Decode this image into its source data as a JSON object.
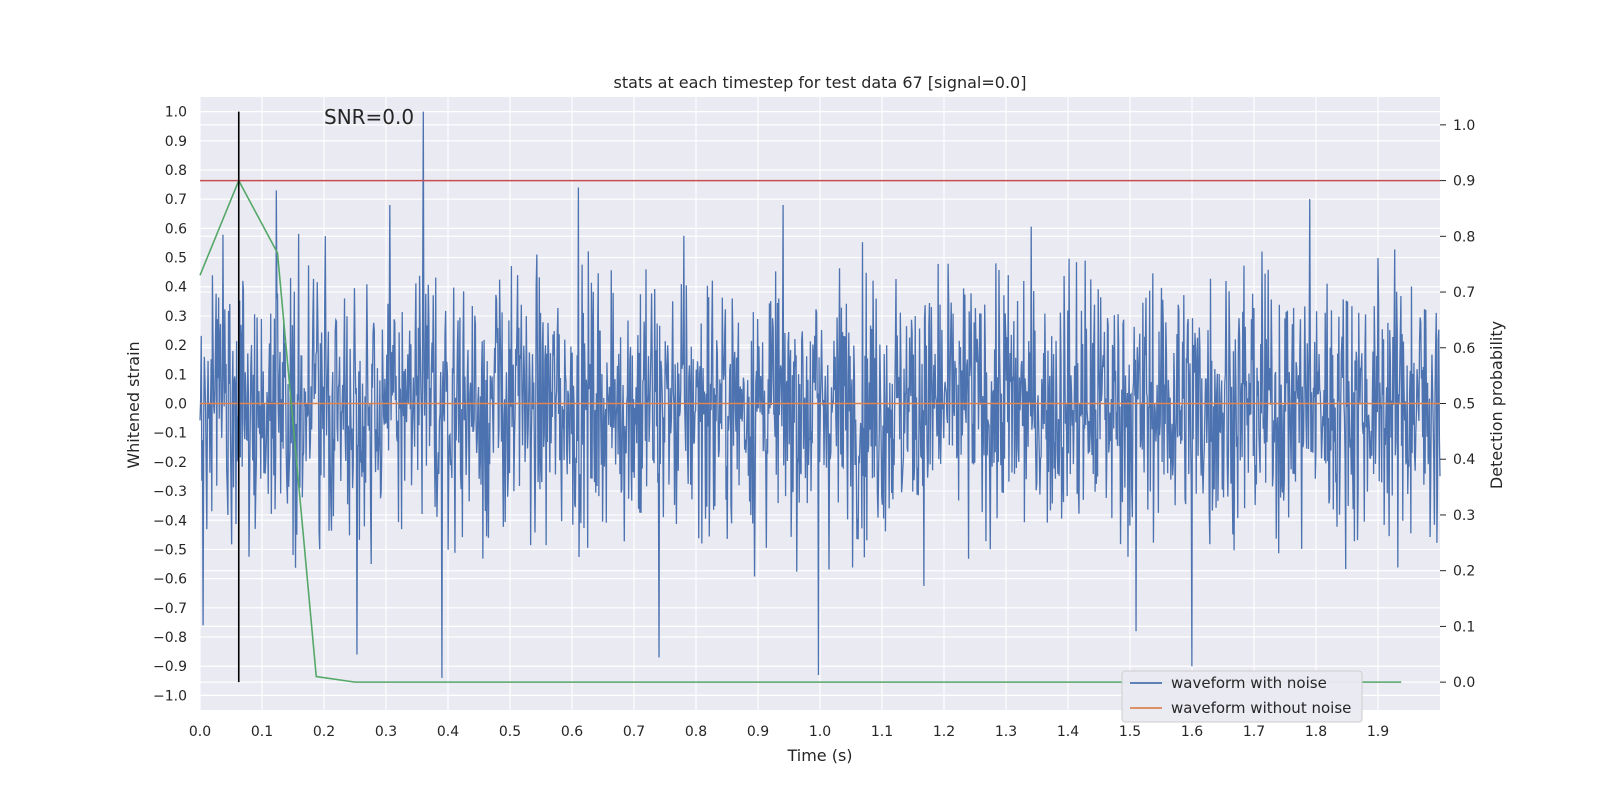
{
  "chart_data": {
    "type": "line",
    "title": "stats at each timestep for test data 67 [signal=0.0]",
    "xlabel": "Time (s)",
    "ylabel": "Whitened strain",
    "y2label": "Detection probability",
    "xlim": [
      0.0,
      2.0
    ],
    "ylim": [
      -1.05,
      1.05
    ],
    "y2lim": [
      -0.05,
      1.05
    ],
    "xticks": [
      "0.0",
      "0.1",
      "0.2",
      "0.3",
      "0.4",
      "0.5",
      "0.6",
      "0.7",
      "0.8",
      "0.9",
      "1.0",
      "1.1",
      "1.2",
      "1.3",
      "1.4",
      "1.5",
      "1.6",
      "1.7",
      "1.8",
      "1.9"
    ],
    "yticks": [
      "1.0",
      "0.9",
      "0.8",
      "0.7",
      "0.6",
      "0.5",
      "0.4",
      "0.3",
      "0.2",
      "0.1",
      "0.0",
      "−0.1",
      "−0.2",
      "−0.3",
      "−0.4",
      "−0.5",
      "−0.6",
      "−0.7",
      "−0.8",
      "−0.9",
      "−1.0"
    ],
    "y2ticks": [
      "1.0",
      "0.9",
      "0.8",
      "0.7",
      "0.6",
      "0.5",
      "0.4",
      "0.3",
      "0.2",
      "0.1",
      "0.0"
    ],
    "annotation": "SNR=0.0",
    "grid": true,
    "legend_position": "lower-right",
    "background": "#eaeaf2",
    "series": [
      {
        "name": "waveform with noise",
        "color": "#4c72b0",
        "kind": "noise",
        "sample_count": 2000,
        "spikes": [
          {
            "x": 0.005,
            "y": -0.76
          },
          {
            "x": 0.123,
            "y": 0.73
          },
          {
            "x": 0.36,
            "y": 1.0
          },
          {
            "x": 0.39,
            "y": -0.94
          },
          {
            "x": 0.253,
            "y": -0.86
          },
          {
            "x": 0.74,
            "y": -0.87
          },
          {
            "x": 0.997,
            "y": -0.93
          },
          {
            "x": 1.6,
            "y": -0.9
          },
          {
            "x": 0.61,
            "y": 0.74
          },
          {
            "x": 1.51,
            "y": -0.78
          },
          {
            "x": 1.79,
            "y": 0.7
          }
        ]
      },
      {
        "name": "waveform without noise",
        "color": "#dd8452",
        "x": [
          0.0,
          2.0
        ],
        "y": [
          0.0,
          0.0
        ]
      },
      {
        "name": "",
        "color": "#55a868",
        "axis": "y2",
        "x": [
          0.0,
          0.0625,
          0.125,
          0.1875,
          0.25,
          0.3125,
          1.9375
        ],
        "y": [
          0.73,
          0.9,
          0.77,
          0.01,
          0.0,
          0.0,
          0.0
        ]
      }
    ],
    "reference_lines": [
      {
        "orientation": "horizontal",
        "axis": "y2",
        "value": 0.9,
        "color": "#c44e52"
      },
      {
        "orientation": "vertical",
        "axis": "x",
        "value": 0.0625,
        "color": "#000000"
      }
    ]
  }
}
